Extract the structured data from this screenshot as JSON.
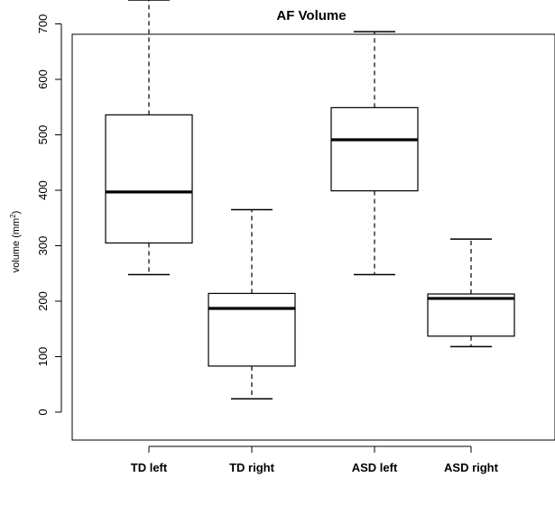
{
  "chart_data": {
    "type": "box",
    "title": "AF Volume",
    "ylabel": "volume (mm²)",
    "xlabel": "",
    "ylim": [
      -10,
      760
    ],
    "yticks": [
      0,
      100,
      200,
      300,
      400,
      500,
      600,
      700
    ],
    "categories": [
      "TD left",
      "TD right",
      "ASD left",
      "ASD right"
    ],
    "boxes": [
      {
        "label": "TD left",
        "whisker_low": 248,
        "q1": 305,
        "median": 397,
        "q3": 536,
        "whisker_high": 743
      },
      {
        "label": "TD right",
        "whisker_low": 24,
        "q1": 83,
        "median": 187,
        "q3": 214,
        "whisker_high": 365
      },
      {
        "label": "ASD left",
        "whisker_low": 248,
        "q1": 399,
        "median": 491,
        "q3": 549,
        "whisker_high": 686
      },
      {
        "label": "ASD right",
        "whisker_low": 118,
        "q1": 137,
        "median": 205,
        "q3": 213,
        "whisker_high": 312
      }
    ],
    "box_fill": "#ffffff",
    "line_color": "#000000",
    "grid": false
  }
}
